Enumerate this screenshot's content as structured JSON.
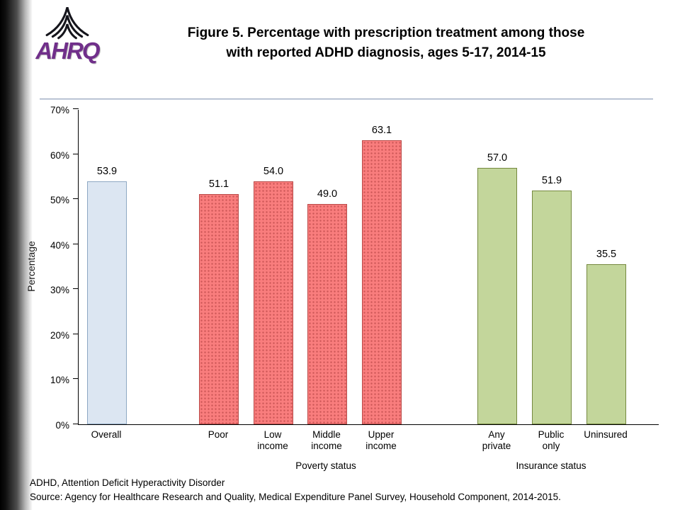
{
  "header": {
    "title_line1": "Figure 5. Percentage with prescription treatment among those",
    "title_line2": "with reported ADHD diagnosis, ages 5-17, 2014-15"
  },
  "logo": {
    "text": "AHRQ",
    "color": "#702f8a"
  },
  "chart_data": {
    "type": "bar",
    "title": "Figure 5. Percentage with prescription treatment among those with reported ADHD diagnosis, ages 5-17, 2014-15",
    "xlabel": "",
    "ylabel": "Percentage",
    "ylim": [
      0,
      70
    ],
    "ytick_labels": [
      "0%",
      "10%",
      "20%",
      "30%",
      "40%",
      "50%",
      "60%",
      "70%"
    ],
    "grid": false,
    "legend": "none",
    "groups": [
      {
        "label": "",
        "fill": "#dce6f2",
        "border": "#8ea8c3",
        "bars": [
          {
            "category": "Overall",
            "value": 53.9,
            "label": "53.9"
          }
        ]
      },
      {
        "label": "Poverty status",
        "fill": "#f97d7d",
        "border": "#b94a48",
        "pattern": "dots",
        "bars": [
          {
            "category": "Poor",
            "value": 51.1,
            "label": "51.1"
          },
          {
            "category": "Low\nincome",
            "value": 54.0,
            "label": "54.0"
          },
          {
            "category": "Middle\nincome",
            "value": 49.0,
            "label": "49.0"
          },
          {
            "category": "Upper\nincome",
            "value": 63.1,
            "label": "63.1"
          }
        ]
      },
      {
        "label": "Insurance status",
        "fill": "#c3d69b",
        "border": "#75893f",
        "bars": [
          {
            "category": "Any\nprivate",
            "value": 57.0,
            "label": "57.0"
          },
          {
            "category": "Public\nonly",
            "value": 51.9,
            "label": "51.9"
          },
          {
            "category": "Uninsured",
            "value": 35.5,
            "label": "35.5"
          }
        ]
      }
    ]
  },
  "footnotes": [
    "ADHD, Attention Deficit Hyperactivity Disorder",
    "Source: Agency for Healthcare Research and Quality, Medical Expenditure Panel Survey, Household Component, 2014-2015."
  ]
}
